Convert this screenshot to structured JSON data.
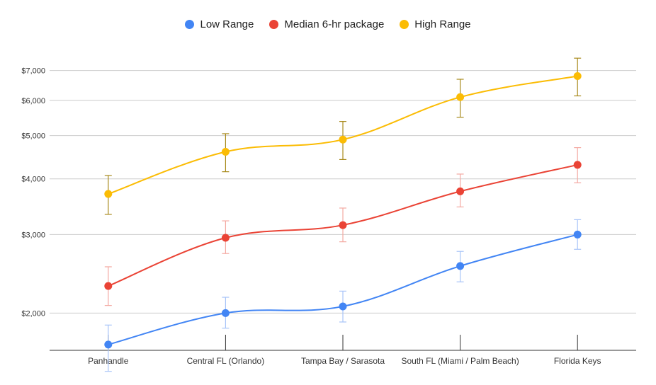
{
  "chart_data": {
    "type": "line",
    "title": "",
    "xlabel": "",
    "ylabel": "",
    "y_scale": "log",
    "ylim": [
      1650,
      7800
    ],
    "grid": true,
    "legend_position": "top",
    "categories": [
      "Panhandle",
      "Central FL (Orlando)",
      "Tampa Bay / Sarasota",
      "South FL (Miami / Palm Beach)",
      "Florida Keys"
    ],
    "y_ticks": [
      {
        "value": 2000,
        "label": "$2,000"
      },
      {
        "value": 3000,
        "label": "$3,000"
      },
      {
        "value": 4000,
        "label": "$4,000"
      },
      {
        "value": 5000,
        "label": "$5,000"
      },
      {
        "value": 6000,
        "label": "$6,000"
      },
      {
        "value": 7000,
        "label": "$7,000"
      }
    ],
    "series": [
      {
        "name": "Low Range",
        "color": "#4285f4",
        "error_color": "#a8c4f8",
        "values": [
          1700,
          2000,
          2070,
          2550,
          3000
        ],
        "error_low": [
          1480,
          1850,
          1910,
          2350,
          2780
        ],
        "error_high": [
          1880,
          2170,
          2240,
          2750,
          3240
        ]
      },
      {
        "name": "Median 6-hr package",
        "color": "#ea4335",
        "error_color": "#f4a9a2",
        "values": [
          2300,
          2950,
          3150,
          3750,
          4300
        ],
        "error_low": [
          2080,
          2720,
          2890,
          3460,
          3920
        ],
        "error_high": [
          2540,
          3220,
          3440,
          4100,
          4700
        ]
      },
      {
        "name": "High Range",
        "color": "#fbbc04",
        "error_color": "#a88a1c",
        "values": [
          3700,
          4600,
          4900,
          6100,
          6800
        ],
        "error_low": [
          3330,
          4150,
          4420,
          5500,
          6140
        ],
        "error_high": [
          4070,
          5050,
          5380,
          6690,
          7460
        ]
      }
    ]
  }
}
